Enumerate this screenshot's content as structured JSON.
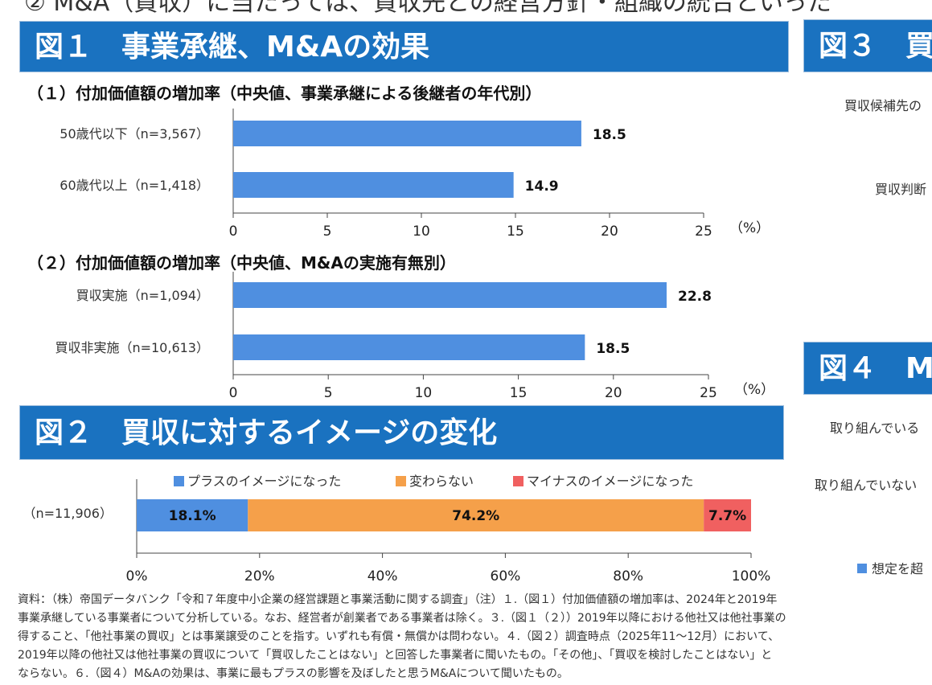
{
  "top_line": "② M&A（買収）に当たっては、買収先との経営方針・組織の統合といった",
  "fig1": {
    "title": "図１　事業承継、M&Aの効果",
    "sub1": "（１）付加価値額の増加率（中央値、事業承継による後継者の年代別）",
    "sub2": "（２）付加価値額の増加率（中央値、M&Aの実施有無別）"
  },
  "fig2": {
    "title": "図２　買収に対するイメージの変化"
  },
  "fig3": {
    "title": "図３　買"
  },
  "fig4": {
    "title": "図４　M"
  },
  "right_cut": {
    "r1": "買収候補先の",
    "r2": "買収判断",
    "r3": "取り組んでいる",
    "r4": "取り組んでいない",
    "r5": "想定を超"
  },
  "notes": [
    "資料：（株）帝国データバンク「令和７年度中小企業の経営課題と事業活動に関する調査」（注）１.（図１）付加価値額の増加率は、2024年と2019年",
    "事業承継している事業者について分析している。なお、経営者が創業者である事業者は除く。３.（図１（２））2019年以降における他社又は他社事業の",
    "得すること、「他社事業の買収」とは事業譲受のことを指す。いずれも有償・無償かは問わない。４.（図２）調査時点（2025年11～12月）において、",
    "2019年以降の他社又は他社事業の買収について「買収したことはない」と回答した事業者に聞いたもの。「その他」、「買収を検討したことはない」と",
    "ならない。６.（図４）M&Aの効果は、事業に最もプラスの影響を及ぼしたと思うM&Aについて聞いたもの。"
  ],
  "colors": {
    "banner": "#1a72c0",
    "bar_blue": "#4f8fe0",
    "orange": "#f5a04a",
    "red": "#f06060"
  },
  "chart_data": [
    {
      "type": "bar",
      "orientation": "horizontal",
      "categories": [
        "50歳代以下（n=3,567）",
        "60歳代以上（n=1,418）"
      ],
      "values": [
        18.5,
        14.9
      ],
      "value_labels": [
        "18.5",
        "14.9"
      ],
      "xlim": [
        0,
        25
      ],
      "ticks": [
        0,
        5,
        10,
        15,
        20,
        25
      ],
      "unit": "（%）"
    },
    {
      "type": "bar",
      "orientation": "horizontal",
      "categories": [
        "買収実施（n=1,094）",
        "買収非実施（n=10,613）"
      ],
      "values": [
        22.8,
        18.5
      ],
      "value_labels": [
        "22.8",
        "18.5"
      ],
      "xlim": [
        0,
        25
      ],
      "ticks": [
        0,
        5,
        10,
        15,
        20,
        25
      ],
      "unit": "（%）"
    },
    {
      "type": "bar",
      "orientation": "horizontal",
      "stacked": true,
      "categories": [
        "（n=11,906）"
      ],
      "series": [
        {
          "name": "プラスのイメージになった",
          "values": [
            18.1
          ],
          "label": "18.1%"
        },
        {
          "name": "変わらない",
          "values": [
            74.2
          ],
          "label": "74.2%"
        },
        {
          "name": "マイナスのイメージになった",
          "values": [
            7.7
          ],
          "label": "7.7%"
        }
      ],
      "xlim": [
        0,
        100
      ],
      "tick_labels": [
        "0%",
        "20%",
        "40%",
        "60%",
        "80%",
        "100%"
      ],
      "legend": "top"
    }
  ]
}
